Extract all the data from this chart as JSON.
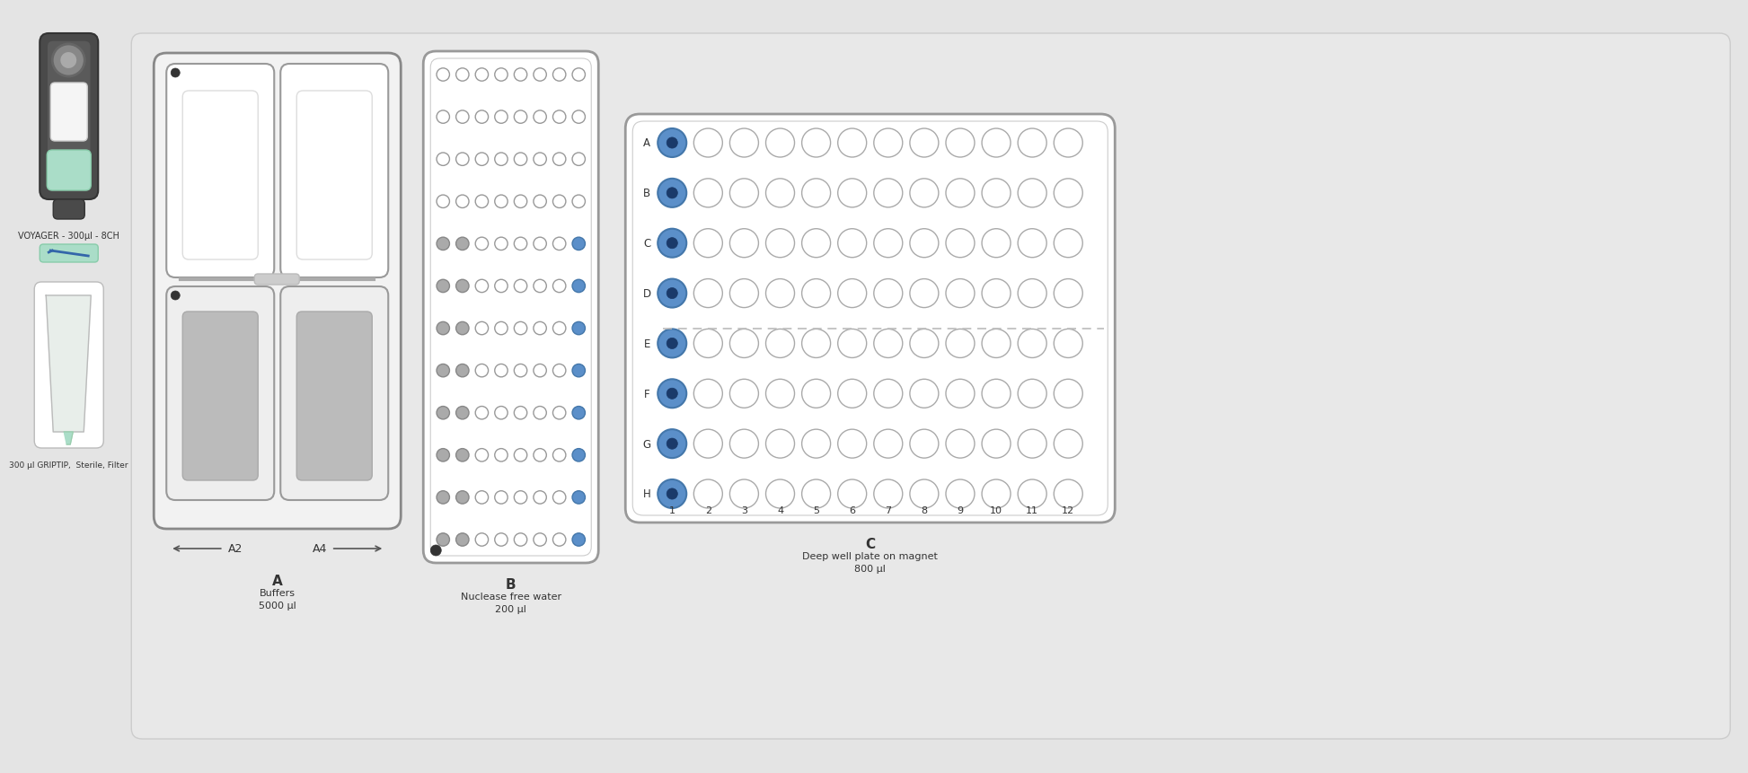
{
  "bg_color": "#e4e4e4",
  "white": "#ffffff",
  "gray_light": "#c8c8c8",
  "gray_med": "#aaaaaa",
  "gray_dark": "#888888",
  "blue_well": "#5b8fc9",
  "dark_text": "#333333",
  "mid_text": "#555555",
  "pipette_label": "VOYAGER - 300µl - 8CH",
  "tip_label": "300 µl GRIPTIP,  Sterile, Filter",
  "slot_A_label": "A",
  "slot_A_sublabel": "Buffers",
  "slot_A_volume": "5000 µl",
  "slot_A2_label": "A2",
  "slot_A4_label": "A4",
  "slot_B_label": "B",
  "slot_B_sublabel": "Nuclease free water",
  "slot_B_volume": "200 µl",
  "slot_C_label": "C",
  "slot_C_sublabel": "Deep well plate on magnet",
  "slot_C_volume": "800 µl",
  "row_labels": [
    "A",
    "B",
    "C",
    "D",
    "E",
    "F",
    "G",
    "H"
  ],
  "col_labels": [
    "1",
    "2",
    "3",
    "4",
    "5",
    "6",
    "7",
    "8",
    "9",
    "10",
    "11",
    "12"
  ]
}
